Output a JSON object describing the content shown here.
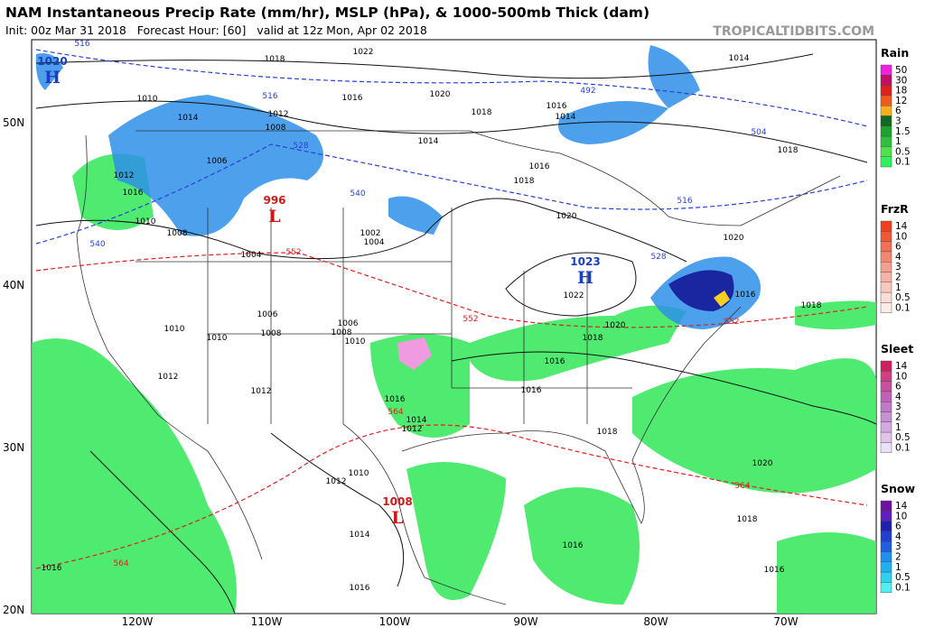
{
  "header": {
    "title": "NAM Instantaneous Precip Rate (mm/hr), MSLP (hPa), & 1000-500mb Thick (dam)",
    "subtitle": "Init: 00z Mar 31 2018   Forecast Hour: [60]   valid at 12z Mon, Apr 02 2018",
    "credit": "TROPICALTIDBITS.COM"
  },
  "map": {
    "lat_labels": [
      "50N",
      "40N",
      "30N",
      "20N"
    ],
    "lon_labels": [
      "120W",
      "110W",
      "100W",
      "90W",
      "80W",
      "70W"
    ],
    "centers": [
      {
        "symbol": "H",
        "pressure": "1020",
        "color": "#1a3fc4"
      },
      {
        "symbol": "L",
        "pressure": "996",
        "color": "#d01818"
      },
      {
        "symbol": "H",
        "pressure": "1023",
        "color": "#1a3fc4"
      },
      {
        "symbol": "L",
        "pressure": "1008",
        "color": "#d01818"
      }
    ],
    "pressure_labels": [
      "1018",
      "1022",
      "1020",
      "1018",
      "1016",
      "1014",
      "1012",
      "1008",
      "1010",
      "1006",
      "1012",
      "1016",
      "1010",
      "1008",
      "1004",
      "1002",
      "1004",
      "1006",
      "1010",
      "1008",
      "1010",
      "1006",
      "1008",
      "1010",
      "1012",
      "1012",
      "1016",
      "1014",
      "1012",
      "1010",
      "1012",
      "1014",
      "1016",
      "1016",
      "1014",
      "1016",
      "1018",
      "1020",
      "1022",
      "1020",
      "1018",
      "1016",
      "1016",
      "1018",
      "1016",
      "1018",
      "1020",
      "1018",
      "1014",
      "1016",
      "1014",
      "1020",
      "1018",
      "1016",
      "1016"
    ],
    "thickness_labels_cold": [
      "516",
      "516",
      "528",
      "540",
      "540",
      "492",
      "504",
      "516",
      "528"
    ],
    "thickness_labels_warm": [
      "552",
      "552",
      "552",
      "564",
      "564",
      "564"
    ],
    "cold_color": "#2a3fd8",
    "warm_color": "#e02020"
  },
  "legend": [
    {
      "title": "Rain",
      "levels": [
        {
          "label": "50",
          "color": "#f020e0"
        },
        {
          "label": "30",
          "color": "#c01060"
        },
        {
          "label": "18",
          "color": "#e02020"
        },
        {
          "label": "12",
          "color": "#f05a20"
        },
        {
          "label": "6",
          "color": "#f5b020"
        },
        {
          "label": "3",
          "color": "#106a20"
        },
        {
          "label": "1.5",
          "color": "#20a030"
        },
        {
          "label": "1",
          "color": "#30c040"
        },
        {
          "label": "0.5",
          "color": "#50e050"
        },
        {
          "label": "0.1",
          "color": "#30f060"
        }
      ]
    },
    {
      "title": "FrzR",
      "levels": [
        {
          "label": "14",
          "color": "#f04020"
        },
        {
          "label": "10",
          "color": "#f05838"
        },
        {
          "label": "6",
          "color": "#f07058"
        },
        {
          "label": "4",
          "color": "#f08870"
        },
        {
          "label": "3",
          "color": "#f4a090"
        },
        {
          "label": "2",
          "color": "#f6b4a8"
        },
        {
          "label": "1",
          "color": "#f8c8c0"
        },
        {
          "label": "0.5",
          "color": "#fadcd6"
        },
        {
          "label": "0.1",
          "color": "#fcece8"
        }
      ]
    },
    {
      "title": "Sleet",
      "levels": [
        {
          "label": "14",
          "color": "#d02060"
        },
        {
          "label": "10",
          "color": "#d04080"
        },
        {
          "label": "6",
          "color": "#c850a0"
        },
        {
          "label": "4",
          "color": "#c060b8"
        },
        {
          "label": "3",
          "color": "#c078c8"
        },
        {
          "label": "2",
          "color": "#c890d4"
        },
        {
          "label": "1",
          "color": "#d4a8e0"
        },
        {
          "label": "0.5",
          "color": "#e0c4ea"
        },
        {
          "label": "0.1",
          "color": "#ece0f4"
        }
      ]
    },
    {
      "title": "Snow",
      "levels": [
        {
          "label": "14",
          "color": "#7010a0"
        },
        {
          "label": "10",
          "color": "#6020c0"
        },
        {
          "label": "6",
          "color": "#2020b0"
        },
        {
          "label": "4",
          "color": "#2040d0"
        },
        {
          "label": "3",
          "color": "#2060e0"
        },
        {
          "label": "2",
          "color": "#2090f0"
        },
        {
          "label": "1",
          "color": "#20b0f0"
        },
        {
          "label": "0.5",
          "color": "#30d0f0"
        },
        {
          "label": "0.1",
          "color": "#50f0f0"
        }
      ]
    }
  ]
}
